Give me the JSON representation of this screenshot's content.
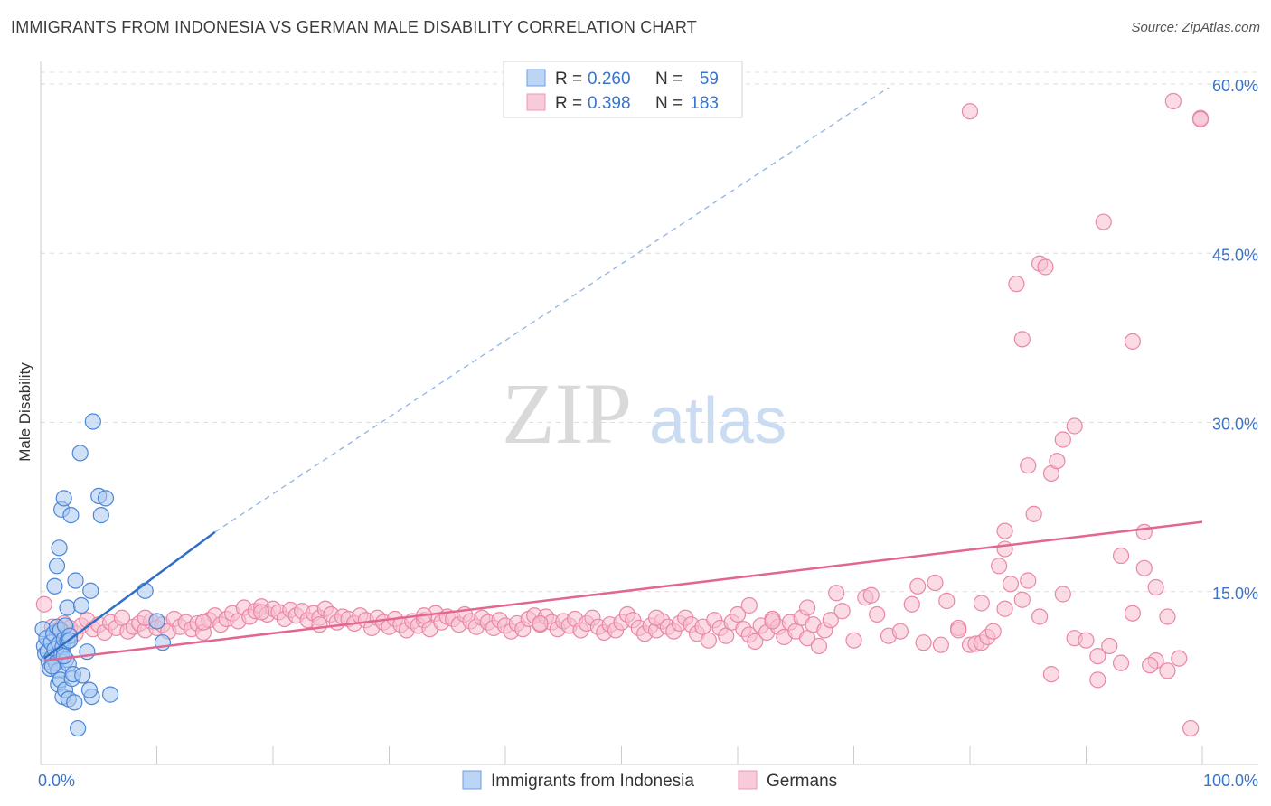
{
  "title": "IMMIGRANTS FROM INDONESIA VS GERMAN MALE DISABILITY CORRELATION CHART",
  "source": "Source: ZipAtlas.com",
  "chart_data": {
    "type": "scatter",
    "xlabel": "",
    "ylabel": "Male Disability",
    "xlim": [
      0,
      100
    ],
    "ylim": [
      0,
      63
    ],
    "x_tick_labels": [
      {
        "value": 0,
        "label": "0.0%"
      },
      {
        "value": 100,
        "label": "100.0%"
      }
    ],
    "y_tick_labels": [
      {
        "value": 15,
        "label": "15.0%"
      },
      {
        "value": 30,
        "label": "30.0%"
      },
      {
        "value": 45,
        "label": "45.0%"
      },
      {
        "value": 60,
        "label": "60.0%"
      }
    ],
    "watermark": {
      "part1": "ZIP",
      "part2": "atlas"
    },
    "colors": {
      "indonesia_fill": "#a9c8f0",
      "indonesia_stroke": "#4a86d8",
      "indonesia_line": "#2f6fc7",
      "germans_fill": "#f7c0d0",
      "germans_stroke": "#ea86a6",
      "germans_line": "#e3668f",
      "tick_text": "#3a74c9",
      "grid": "#dddddd"
    },
    "legend_top": {
      "rows": [
        {
          "r_label": "R =",
          "r_value": "0.260",
          "n_label": "N =",
          "n_value": "59"
        },
        {
          "r_label": "R =",
          "r_value": "0.398",
          "n_label": "N =",
          "n_value": "183"
        }
      ]
    },
    "legend_bottom": [
      "Immigrants from Indonesia",
      "Germans"
    ],
    "series": [
      {
        "name": "Immigrants from Indonesia",
        "trend_solid": [
          [
            0.3,
            9.4
          ],
          [
            15.0,
            20.6
          ]
        ],
        "trend_dashed": [
          [
            15.0,
            20.6
          ],
          [
            73.0,
            60.0
          ]
        ],
        "points": [
          [
            0.2,
            12.0
          ],
          [
            0.3,
            10.5
          ],
          [
            0.4,
            9.8
          ],
          [
            0.5,
            11.2
          ],
          [
            0.6,
            10.0
          ],
          [
            0.7,
            9.1
          ],
          [
            0.8,
            8.5
          ],
          [
            0.9,
            10.8
          ],
          [
            1.0,
            9.5
          ],
          [
            1.1,
            11.6
          ],
          [
            1.2,
            10.2
          ],
          [
            1.3,
            9.0
          ],
          [
            1.4,
            12.2
          ],
          [
            1.5,
            8.3
          ],
          [
            1.6,
            10.7
          ],
          [
            1.7,
            11.9
          ],
          [
            1.8,
            9.7
          ],
          [
            1.9,
            10.4
          ],
          [
            2.0,
            11.1
          ],
          [
            2.1,
            12.3
          ],
          [
            2.2,
            9.3
          ],
          [
            2.3,
            10.9
          ],
          [
            2.4,
            8.9
          ],
          [
            2.5,
            11.4
          ],
          [
            1.2,
            15.8
          ],
          [
            1.4,
            17.6
          ],
          [
            1.6,
            19.2
          ],
          [
            1.8,
            22.6
          ],
          [
            2.0,
            23.6
          ],
          [
            2.3,
            13.9
          ],
          [
            2.5,
            11.0
          ],
          [
            2.6,
            22.1
          ],
          [
            1.5,
            7.1
          ],
          [
            1.7,
            7.5
          ],
          [
            1.9,
            6.0
          ],
          [
            2.1,
            6.6
          ],
          [
            2.4,
            5.8
          ],
          [
            2.7,
            7.6
          ],
          [
            2.8,
            8.0
          ],
          [
            2.9,
            5.5
          ],
          [
            3.0,
            16.3
          ],
          [
            3.2,
            3.2
          ],
          [
            3.4,
            27.6
          ],
          [
            3.5,
            14.1
          ],
          [
            3.6,
            7.9
          ],
          [
            4.0,
            10.0
          ],
          [
            4.3,
            15.4
          ],
          [
            4.5,
            30.4
          ],
          [
            5.0,
            23.8
          ],
          [
            5.2,
            22.1
          ],
          [
            5.6,
            23.6
          ],
          [
            6.0,
            6.2
          ],
          [
            4.4,
            6.0
          ],
          [
            4.2,
            6.6
          ],
          [
            9.0,
            15.4
          ],
          [
            10.0,
            12.7
          ],
          [
            10.5,
            10.8
          ],
          [
            2.0,
            9.6
          ],
          [
            1.0,
            8.7
          ]
        ]
      },
      {
        "name": "Germans",
        "trend_solid": [
          [
            0.3,
            9.2
          ],
          [
            100,
            21.5
          ]
        ],
        "points": [
          [
            0.3,
            14.2
          ],
          [
            1.0,
            12.2
          ],
          [
            1.5,
            11.9
          ],
          [
            2.0,
            12.5
          ],
          [
            2.5,
            12.1
          ],
          [
            3.0,
            11.6
          ],
          [
            3.5,
            12.3
          ],
          [
            4.0,
            12.8
          ],
          [
            4.5,
            12.0
          ],
          [
            5.0,
            12.4
          ],
          [
            5.5,
            11.7
          ],
          [
            6.0,
            12.6
          ],
          [
            6.5,
            12.1
          ],
          [
            7.0,
            13.0
          ],
          [
            7.5,
            11.8
          ],
          [
            8.0,
            12.2
          ],
          [
            8.5,
            12.5
          ],
          [
            9.0,
            11.9
          ],
          [
            9.5,
            12.7
          ],
          [
            10.0,
            12.1
          ],
          [
            10.5,
            12.4
          ],
          [
            11.0,
            11.8
          ],
          [
            11.5,
            12.9
          ],
          [
            12.0,
            12.2
          ],
          [
            12.5,
            12.6
          ],
          [
            13.0,
            12.0
          ],
          [
            13.5,
            12.5
          ],
          [
            14.0,
            11.7
          ],
          [
            14.5,
            12.8
          ],
          [
            15.0,
            13.2
          ],
          [
            15.5,
            12.4
          ],
          [
            16.0,
            12.9
          ],
          [
            16.5,
            13.4
          ],
          [
            17.0,
            12.7
          ],
          [
            17.5,
            13.9
          ],
          [
            18.0,
            13.1
          ],
          [
            18.5,
            13.6
          ],
          [
            19.0,
            14.0
          ],
          [
            19.5,
            13.3
          ],
          [
            20.0,
            13.8
          ],
          [
            20.5,
            13.5
          ],
          [
            21.0,
            12.9
          ],
          [
            21.5,
            13.7
          ],
          [
            22.0,
            13.2
          ],
          [
            22.5,
            13.6
          ],
          [
            23.0,
            12.8
          ],
          [
            23.5,
            13.4
          ],
          [
            24.0,
            13.0
          ],
          [
            24.5,
            13.8
          ],
          [
            25.0,
            13.3
          ],
          [
            25.5,
            12.6
          ],
          [
            26.0,
            13.1
          ],
          [
            26.5,
            12.9
          ],
          [
            27.0,
            12.5
          ],
          [
            27.5,
            13.2
          ],
          [
            28.0,
            12.8
          ],
          [
            28.5,
            12.1
          ],
          [
            29.0,
            13.0
          ],
          [
            29.5,
            12.6
          ],
          [
            30.0,
            12.2
          ],
          [
            30.5,
            12.9
          ],
          [
            31.0,
            12.4
          ],
          [
            31.5,
            11.9
          ],
          [
            32.0,
            12.7
          ],
          [
            32.5,
            12.3
          ],
          [
            33.0,
            12.8
          ],
          [
            33.5,
            12.0
          ],
          [
            34.0,
            13.4
          ],
          [
            34.5,
            12.6
          ],
          [
            35.0,
            13.1
          ],
          [
            35.5,
            12.9
          ],
          [
            36.0,
            12.4
          ],
          [
            36.5,
            13.3
          ],
          [
            37.0,
            12.7
          ],
          [
            37.5,
            12.2
          ],
          [
            38.0,
            13.0
          ],
          [
            38.5,
            12.6
          ],
          [
            39.0,
            12.1
          ],
          [
            39.5,
            12.8
          ],
          [
            40.0,
            12.3
          ],
          [
            40.5,
            11.8
          ],
          [
            41.0,
            12.5
          ],
          [
            41.5,
            12.0
          ],
          [
            42.0,
            12.9
          ],
          [
            42.5,
            13.2
          ],
          [
            43.0,
            12.4
          ],
          [
            43.5,
            13.1
          ],
          [
            44.0,
            12.6
          ],
          [
            44.5,
            12.0
          ],
          [
            45.0,
            12.7
          ],
          [
            45.5,
            12.3
          ],
          [
            46.0,
            12.9
          ],
          [
            46.5,
            11.9
          ],
          [
            47.0,
            12.5
          ],
          [
            47.5,
            13.0
          ],
          [
            48.0,
            12.2
          ],
          [
            48.5,
            11.7
          ],
          [
            49.0,
            12.4
          ],
          [
            49.5,
            11.9
          ],
          [
            50.0,
            12.6
          ],
          [
            50.5,
            13.3
          ],
          [
            51.0,
            12.8
          ],
          [
            51.5,
            12.1
          ],
          [
            52.0,
            11.6
          ],
          [
            52.5,
            12.3
          ],
          [
            53.0,
            11.9
          ],
          [
            53.5,
            12.7
          ],
          [
            54.0,
            12.2
          ],
          [
            54.5,
            11.8
          ],
          [
            55.0,
            12.5
          ],
          [
            55.5,
            13.0
          ],
          [
            56.0,
            12.4
          ],
          [
            56.5,
            11.6
          ],
          [
            57.0,
            12.2
          ],
          [
            57.5,
            11.0
          ],
          [
            58.0,
            12.8
          ],
          [
            58.5,
            12.1
          ],
          [
            59.0,
            11.4
          ],
          [
            59.5,
            12.6
          ],
          [
            60.0,
            13.3
          ],
          [
            60.5,
            12.0
          ],
          [
            61.0,
            11.5
          ],
          [
            61.5,
            10.9
          ],
          [
            62.0,
            12.3
          ],
          [
            62.5,
            11.7
          ],
          [
            63.0,
            12.9
          ],
          [
            63.5,
            12.2
          ],
          [
            64.0,
            11.3
          ],
          [
            64.5,
            12.6
          ],
          [
            65.0,
            11.8
          ],
          [
            65.5,
            13.0
          ],
          [
            66.0,
            11.2
          ],
          [
            66.5,
            12.4
          ],
          [
            67.0,
            10.5
          ],
          [
            67.5,
            11.9
          ],
          [
            68.0,
            12.8
          ],
          [
            69.0,
            13.6
          ],
          [
            70.0,
            11.0
          ],
          [
            71.0,
            14.8
          ],
          [
            72.0,
            13.3
          ],
          [
            73.0,
            11.4
          ],
          [
            74.0,
            11.8
          ],
          [
            75.0,
            14.2
          ],
          [
            76.0,
            10.8
          ],
          [
            9.0,
            13.0
          ],
          [
            14.0,
            12.6
          ],
          [
            19.0,
            13.5
          ],
          [
            24.0,
            12.4
          ],
          [
            33.0,
            13.2
          ],
          [
            43.0,
            12.5
          ],
          [
            53.0,
            13.0
          ],
          [
            63.0,
            12.7
          ],
          [
            61.0,
            14.1
          ],
          [
            66.0,
            13.9
          ],
          [
            68.5,
            15.2
          ],
          [
            71.5,
            15.0
          ],
          [
            75.5,
            15.8
          ],
          [
            77.0,
            16.1
          ],
          [
            78.0,
            14.5
          ],
          [
            79.0,
            12.1
          ],
          [
            80.0,
            10.6
          ],
          [
            80.5,
            10.7
          ],
          [
            81.0,
            10.8
          ],
          [
            81.5,
            11.3
          ],
          [
            82.0,
            11.8
          ],
          [
            82.5,
            17.6
          ],
          [
            83.0,
            19.1
          ],
          [
            83.5,
            16.0
          ],
          [
            83.0,
            20.7
          ],
          [
            85.0,
            26.5
          ],
          [
            85.5,
            22.2
          ],
          [
            86.0,
            13.1
          ],
          [
            87.0,
            25.8
          ],
          [
            87.5,
            26.9
          ],
          [
            88.0,
            15.1
          ],
          [
            89.0,
            11.2
          ],
          [
            90.0,
            11.0
          ],
          [
            91.0,
            9.6
          ],
          [
            92.0,
            10.5
          ],
          [
            93.0,
            18.5
          ],
          [
            94.0,
            13.4
          ],
          [
            95.0,
            20.6
          ],
          [
            96.0,
            9.2
          ],
          [
            97.0,
            8.3
          ],
          [
            98.0,
            9.4
          ],
          [
            99.0,
            3.2
          ],
          [
            100.0,
            57.3
          ]
        ],
        "extra_points": [
          [
            84.0,
            42.6
          ],
          [
            86.0,
            44.4
          ],
          [
            86.5,
            44.1
          ],
          [
            84.5,
            37.7
          ],
          [
            88.0,
            28.8
          ],
          [
            89.0,
            30.0
          ],
          [
            91.5,
            48.1
          ],
          [
            94.0,
            37.5
          ],
          [
            97.5,
            58.8
          ],
          [
            101.0,
            57.2
          ],
          [
            80.0,
            57.9
          ],
          [
            95.0,
            17.4
          ],
          [
            96.0,
            15.7
          ],
          [
            97.0,
            13.1
          ],
          [
            95.5,
            8.8
          ],
          [
            93.0,
            9.0
          ],
          [
            91.0,
            7.5
          ],
          [
            87.0,
            8.0
          ],
          [
            85.0,
            16.3
          ],
          [
            84.5,
            14.6
          ],
          [
            83.0,
            13.8
          ],
          [
            81.0,
            14.3
          ],
          [
            79.0,
            11.9
          ],
          [
            77.5,
            10.6
          ]
        ]
      }
    ]
  }
}
